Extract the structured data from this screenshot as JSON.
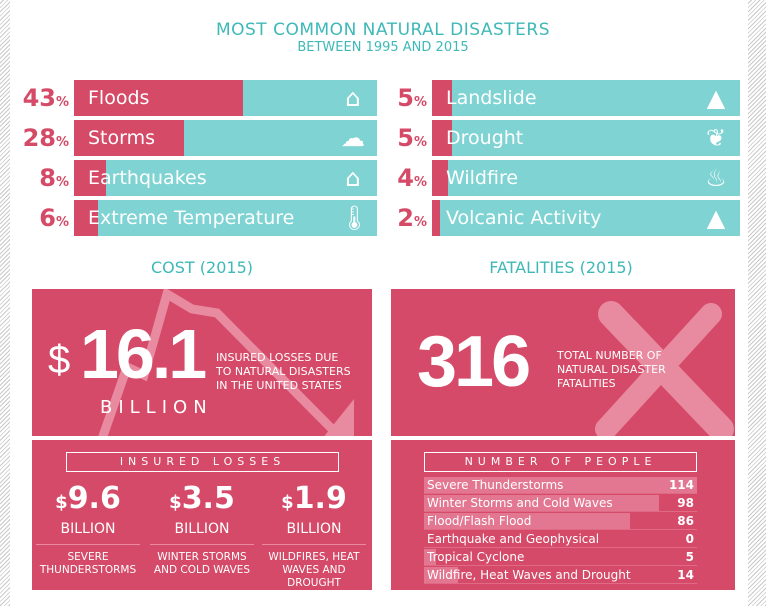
{
  "title": "MOST COMMON NATURAL DISASTERS",
  "subtitle": "BETWEEN 1995 AND 2015",
  "colors": {
    "accent": "#d44a67",
    "bar_bg": "#7fd3d3",
    "heading": "#3fb8b8"
  },
  "chart_data": [
    {
      "type": "bar",
      "title": "MOST COMMON NATURAL DISASTERS",
      "subtitle": "BETWEEN 1995 AND 2015",
      "categories": [
        "Floods",
        "Storms",
        "Earthquakes",
        "Extreme Temperature",
        "Landslide",
        "Drought",
        "Wildfire",
        "Volcanic Activity"
      ],
      "values": [
        43,
        28,
        8,
        6,
        5,
        5,
        4,
        2
      ],
      "labels": [
        "43",
        "28",
        "8",
        "6",
        "5",
        "5",
        "4",
        "2"
      ],
      "unit": "%",
      "icons": [
        "flooded-house-icon",
        "storm-cloud-icon",
        "collapsed-house-icon",
        "thermometer-icon",
        "landslide-icon",
        "drought-icon",
        "fire-icon",
        "volcano-icon"
      ]
    },
    {
      "type": "bar",
      "title": "NUMBER OF PEOPLE",
      "categories": [
        "Severe Thunderstorms",
        "Winter Storms and Cold Waves",
        "Flood/Flash Flood",
        "Earthquake and Geophysical",
        "Tropical Cyclone",
        "Wildfire, Heat Waves and Drought"
      ],
      "values": [
        114,
        98,
        86,
        0,
        5,
        14
      ],
      "labels": [
        "114",
        "98",
        "86",
        "0",
        "5",
        "14"
      ]
    }
  ],
  "cost": {
    "heading": "COST (2015)",
    "currency": "$",
    "amount": "16.1",
    "unit": "BILLION",
    "desc": [
      "INSURED LOSSES DUE",
      "TO NATURAL DISASTERS",
      "IN THE UNITED STATES"
    ],
    "losses_header": "INSURED LOSSES",
    "losses": [
      {
        "cur": "$",
        "amt": "9.6",
        "unit": "BILLION",
        "desc": "SEVERE THUNDERSTORMS"
      },
      {
        "cur": "$",
        "amt": "3.5",
        "unit": "BILLION",
        "desc": "WINTER STORMS AND COLD WAVES"
      },
      {
        "cur": "$",
        "amt": "1.9",
        "unit": "BILLION",
        "desc": "WILDFIRES, HEAT WAVES AND DROUGHT"
      }
    ]
  },
  "fatalities": {
    "heading": "FATALITIES (2015)",
    "total": "316",
    "desc": [
      "TOTAL NUMBER OF",
      "NATURAL DISASTER",
      "FATALITIES"
    ]
  }
}
